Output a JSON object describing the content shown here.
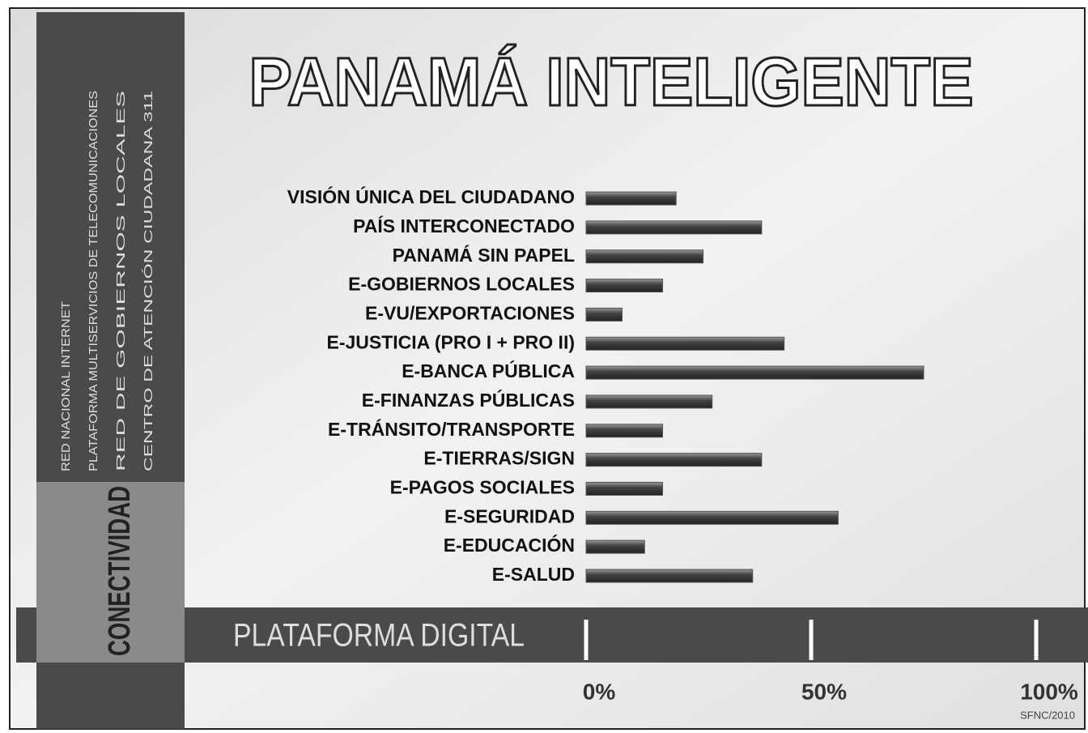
{
  "chart_data": {
    "type": "bar",
    "orientation": "horizontal",
    "title": "PANAMÁ INTELIGENTE",
    "categories": [
      "VISIÓN ÚNICA DEL CIUDADANO",
      "PAÍS INTERCONECTADO",
      "PANAMÁ SIN PAPEL",
      "E-GOBIERNOS LOCALES",
      "E-VU/EXPORTACIONES",
      "E-JUSTICIA (PRO I + PRO II)",
      "E-BANCA PÚBLICA",
      "E-FINANZAS PÚBLICAS",
      "E-TRÁNSITO/TRANSPORTE",
      "E-TIERRAS/SIGN",
      "E-PAGOS SOCIALES",
      "E-SEGURIDAD",
      "E-EDUCACIÓN",
      "E-SALUD"
    ],
    "values": [
      20,
      39,
      26,
      17,
      8,
      44,
      75,
      28,
      17,
      39,
      17,
      56,
      13,
      37
    ],
    "color": "#555555",
    "xlim": [
      0,
      100
    ],
    "xticks": [
      {
        "value": 0,
        "label": "0%"
      },
      {
        "value": 50,
        "label": "50%"
      },
      {
        "value": 100,
        "label": "100%"
      }
    ],
    "sidebar_items": [
      "RED NACIONAL INTERNET",
      "PLATAFORMA MULTISERVICIOS DE TELECOMUNICACIONES",
      "RED DE GOBIERNOS LOCALES",
      "CENTRO DE ATENCIÓN CIUDADANA 311"
    ],
    "sidebar_label": "CONECTIVIDAD",
    "band_label": "PLATAFORMA DIGITAL",
    "credit": "SFNC/2010"
  }
}
